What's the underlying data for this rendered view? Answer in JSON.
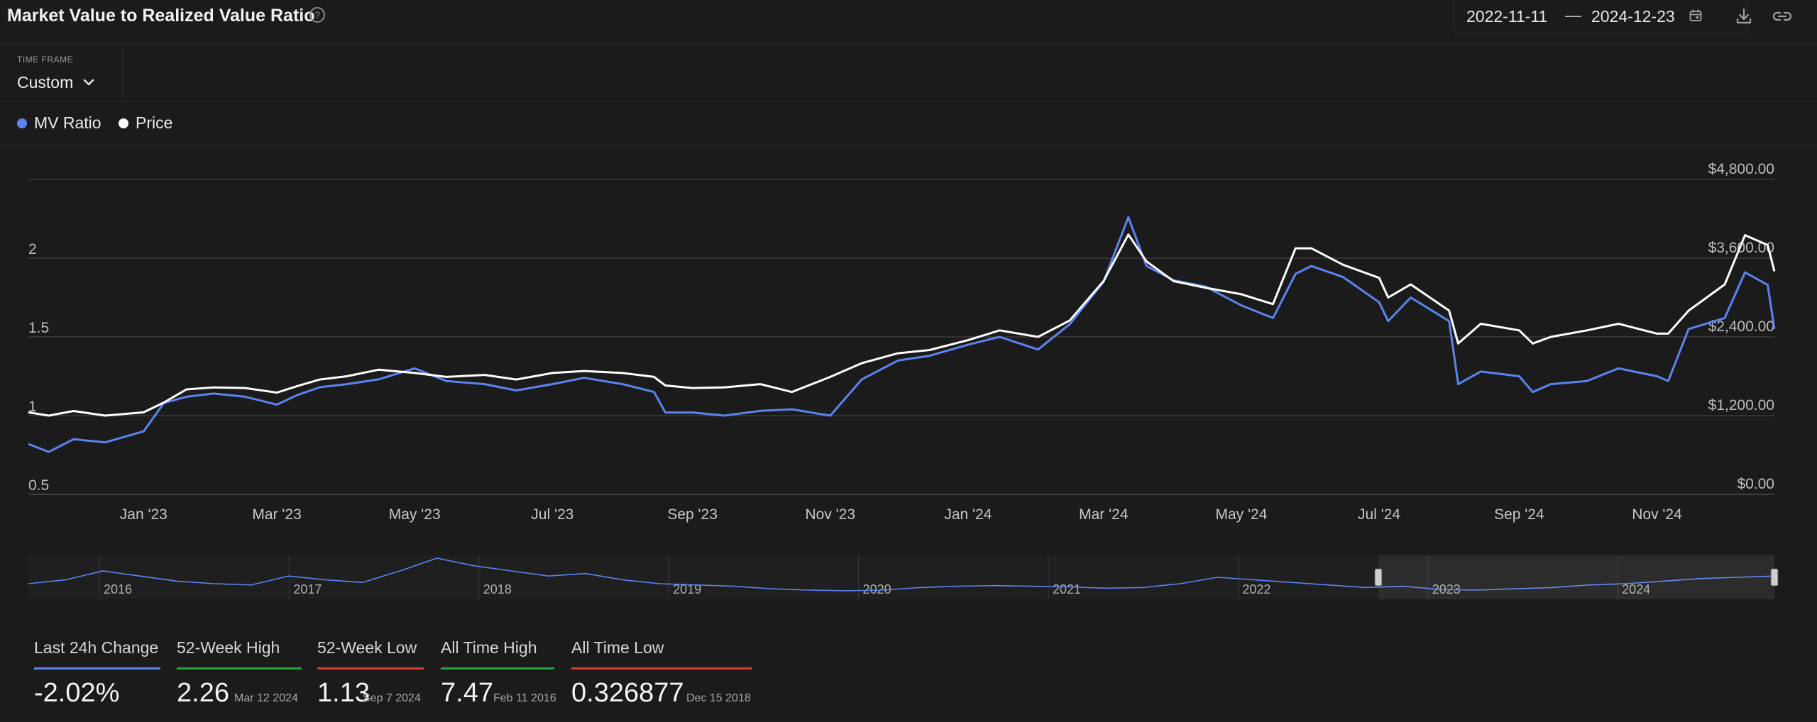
{
  "header": {
    "title": "Market Value to Realized Value Ratio",
    "help_symbol": "?",
    "date_from": "2022-11-11",
    "date_separator": "—",
    "date_to": "2024-12-23"
  },
  "timeframe": {
    "label": "TIME FRAME",
    "value": "Custom"
  },
  "legend": [
    {
      "label": "MV Ratio",
      "color": "#5b84f0"
    },
    {
      "label": "Price",
      "color": "#ffffff"
    }
  ],
  "stats": [
    {
      "label": "Last 24h Change",
      "value": "-2.02%",
      "date": "",
      "color": "#5b84f0"
    },
    {
      "label": "52-Week High",
      "value": "2.26",
      "date": "Mar 12 2024",
      "color": "#26a63a"
    },
    {
      "label": "52-Week Low",
      "value": "1.13",
      "date": "Sep 7 2024",
      "color": "#e0392f"
    },
    {
      "label": "All Time High",
      "value": "7.47",
      "date": "Feb 11 2016",
      "color": "#26a63a"
    },
    {
      "label": "All Time Low",
      "value": "0.326877",
      "date": "Dec 15 2018",
      "color": "#e0392f"
    }
  ],
  "chart_data": {
    "type": "line",
    "x_range": [
      "2022-11-11",
      "2024-12-23"
    ],
    "x_tick_labels": [
      "Jan '23",
      "Mar '23",
      "May '23",
      "Jul '23",
      "Sep '23",
      "Nov '23",
      "Jan '24",
      "Mar '24",
      "May '24",
      "Jul '24",
      "Sep '24",
      "Nov '24"
    ],
    "y_left": {
      "label": "MV Ratio",
      "ticks": [
        "0.5",
        "1",
        "1.5",
        "2"
      ],
      "range": [
        0.5,
        2.5
      ]
    },
    "y_right": {
      "label": "Price",
      "ticks": [
        "$0.00",
        "$1,200.00",
        "$2,400.00",
        "$3,600.00",
        "$4,800.00"
      ],
      "range": [
        0,
        4800
      ]
    },
    "grid": true,
    "legend_position": "top-left",
    "series": [
      {
        "name": "MV Ratio",
        "axis": "left",
        "color": "#5b84f0",
        "x": [
          "2022-11-11",
          "2022-11-20",
          "2022-12-01",
          "2022-12-15",
          "2023-01-01",
          "2023-01-10",
          "2023-01-20",
          "2023-02-01",
          "2023-02-15",
          "2023-03-01",
          "2023-03-10",
          "2023-03-20",
          "2023-04-01",
          "2023-04-15",
          "2023-05-01",
          "2023-05-15",
          "2023-06-01",
          "2023-06-15",
          "2023-07-01",
          "2023-07-15",
          "2023-08-01",
          "2023-08-15",
          "2023-08-20",
          "2023-09-01",
          "2023-09-15",
          "2023-10-01",
          "2023-10-15",
          "2023-11-01",
          "2023-11-15",
          "2023-12-01",
          "2023-12-15",
          "2024-01-01",
          "2024-01-15",
          "2024-02-01",
          "2024-02-15",
          "2024-03-01",
          "2024-03-12",
          "2024-03-20",
          "2024-04-01",
          "2024-04-15",
          "2024-05-01",
          "2024-05-15",
          "2024-05-25",
          "2024-06-01",
          "2024-06-15",
          "2024-07-01",
          "2024-07-05",
          "2024-07-15",
          "2024-08-01",
          "2024-08-05",
          "2024-08-15",
          "2024-09-01",
          "2024-09-07",
          "2024-09-15",
          "2024-10-01",
          "2024-10-15",
          "2024-11-01",
          "2024-11-06",
          "2024-11-15",
          "2024-12-01",
          "2024-12-10",
          "2024-12-20",
          "2024-12-23"
        ],
        "y": [
          0.82,
          0.77,
          0.85,
          0.83,
          0.9,
          1.08,
          1.12,
          1.14,
          1.12,
          1.07,
          1.13,
          1.18,
          1.2,
          1.23,
          1.3,
          1.22,
          1.2,
          1.16,
          1.2,
          1.24,
          1.2,
          1.15,
          1.02,
          1.02,
          1.0,
          1.03,
          1.04,
          1.0,
          1.23,
          1.35,
          1.38,
          1.45,
          1.5,
          1.42,
          1.58,
          1.85,
          2.26,
          1.95,
          1.86,
          1.82,
          1.7,
          1.62,
          1.9,
          1.95,
          1.88,
          1.72,
          1.6,
          1.75,
          1.6,
          1.2,
          1.28,
          1.25,
          1.15,
          1.2,
          1.22,
          1.3,
          1.25,
          1.22,
          1.55,
          1.62,
          1.91,
          1.83,
          1.55
        ]
      },
      {
        "name": "Price",
        "axis": "right",
        "color": "#ffffff",
        "x": [
          "2022-11-11",
          "2022-11-20",
          "2022-12-01",
          "2022-12-15",
          "2023-01-01",
          "2023-01-10",
          "2023-01-20",
          "2023-02-01",
          "2023-02-15",
          "2023-03-01",
          "2023-03-10",
          "2023-03-20",
          "2023-04-01",
          "2023-04-15",
          "2023-05-01",
          "2023-05-15",
          "2023-06-01",
          "2023-06-15",
          "2023-07-01",
          "2023-07-15",
          "2023-08-01",
          "2023-08-15",
          "2023-08-20",
          "2023-09-01",
          "2023-09-15",
          "2023-10-01",
          "2023-10-15",
          "2023-11-01",
          "2023-11-15",
          "2023-12-01",
          "2023-12-15",
          "2024-01-01",
          "2024-01-15",
          "2024-02-01",
          "2024-02-15",
          "2024-03-01",
          "2024-03-12",
          "2024-03-20",
          "2024-04-01",
          "2024-04-15",
          "2024-05-01",
          "2024-05-15",
          "2024-05-25",
          "2024-06-01",
          "2024-06-15",
          "2024-07-01",
          "2024-07-05",
          "2024-07-15",
          "2024-08-01",
          "2024-08-05",
          "2024-08-15",
          "2024-09-01",
          "2024-09-07",
          "2024-09-15",
          "2024-10-01",
          "2024-10-15",
          "2024-11-01",
          "2024-11-06",
          "2024-11-15",
          "2024-12-01",
          "2024-12-10",
          "2024-12-20",
          "2024-12-23"
        ],
        "y": [
          1250,
          1200,
          1270,
          1200,
          1250,
          1400,
          1600,
          1630,
          1620,
          1550,
          1650,
          1750,
          1800,
          1900,
          1850,
          1790,
          1820,
          1750,
          1850,
          1880,
          1850,
          1790,
          1660,
          1620,
          1630,
          1680,
          1560,
          1790,
          2000,
          2150,
          2200,
          2350,
          2500,
          2400,
          2650,
          3250,
          3960,
          3550,
          3250,
          3150,
          3050,
          2900,
          3750,
          3750,
          3500,
          3300,
          3000,
          3200,
          2800,
          2300,
          2600,
          2500,
          2300,
          2400,
          2500,
          2600,
          2450,
          2450,
          2800,
          3200,
          3950,
          3800,
          3400
        ]
      }
    ]
  },
  "navigator": {
    "year_labels": [
      "2016",
      "2017",
      "2018",
      "2019",
      "2020",
      "2021",
      "2022",
      "2023",
      "2024"
    ],
    "window_from": "2022-11-11",
    "window_to": "2024-12-23",
    "series_values": [
      1.0,
      1.3,
      2.0,
      1.6,
      1.2,
      1.0,
      0.9,
      1.6,
      1.3,
      1.1,
      2.0,
      3.0,
      2.4,
      2.0,
      1.6,
      1.8,
      1.3,
      1.0,
      0.9,
      0.8,
      0.6,
      0.5,
      0.45,
      0.5,
      0.7,
      0.8,
      0.85,
      0.8,
      0.75,
      0.65,
      0.7,
      1.0,
      1.5,
      1.3,
      1.1,
      0.9,
      0.7,
      0.8,
      0.55,
      0.5,
      0.6,
      0.7,
      0.9,
      1.0,
      1.2,
      1.4,
      1.5,
      1.6
    ]
  }
}
